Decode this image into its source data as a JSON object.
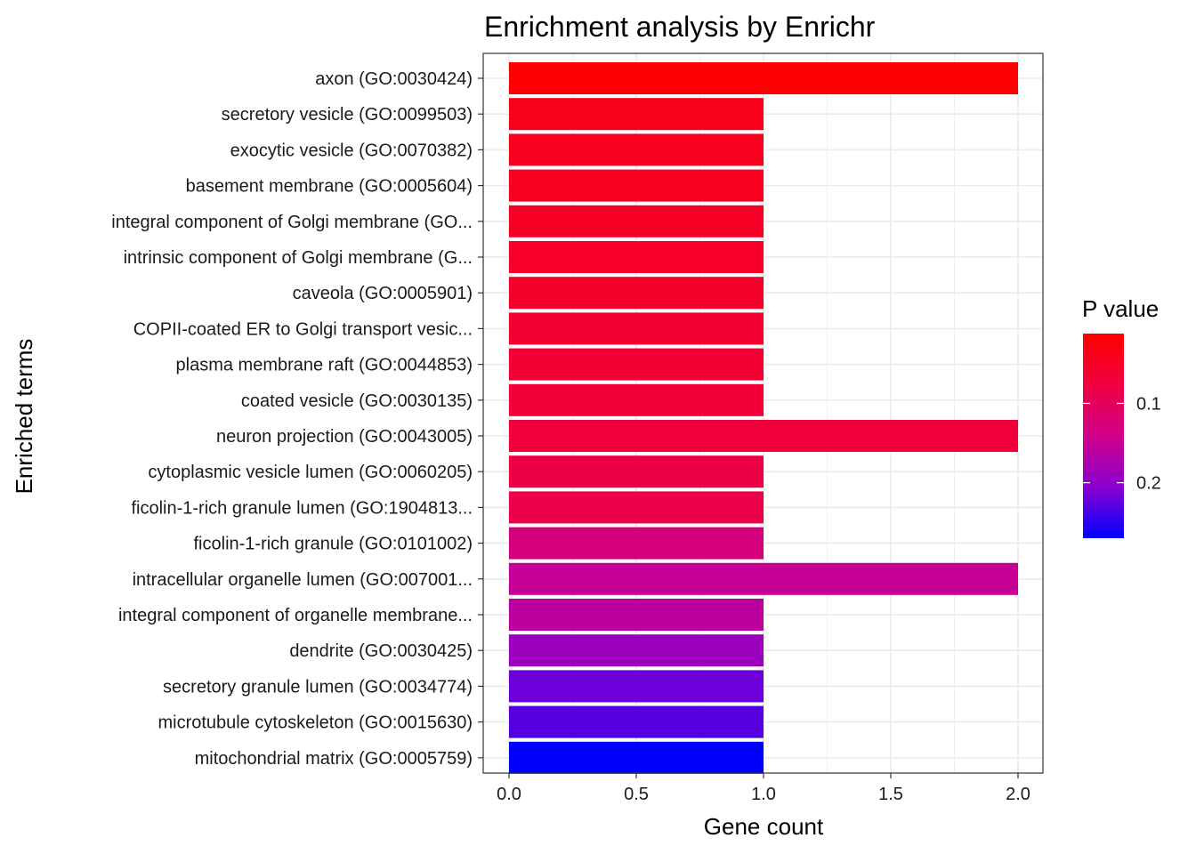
{
  "chart_data": {
    "type": "bar",
    "orientation": "horizontal",
    "title": "Enrichment analysis by Enrichr",
    "xlabel": "Gene count",
    "ylabel": "Enriched terms",
    "xlim": [
      0,
      2.1
    ],
    "xticks": [
      "0.0",
      "0.5",
      "1.0",
      "1.5",
      "2.0"
    ],
    "xtick_values": [
      0,
      0.5,
      1.0,
      1.5,
      2.0
    ],
    "grid": true,
    "categories": [
      "axon (GO:0030424)",
      "secretory vesicle (GO:0099503)",
      "exocytic vesicle (GO:0070382)",
      "basement membrane (GO:0005604)",
      "integral component of Golgi membrane (GO...",
      "intrinsic component of Golgi membrane (G...",
      "caveola (GO:0005901)",
      "COPII-coated ER to Golgi transport vesic...",
      "plasma membrane raft (GO:0044853)",
      "coated vesicle (GO:0030135)",
      "neuron projection (GO:0043005)",
      "cytoplasmic vesicle lumen (GO:0060205)",
      "ficolin-1-rich granule lumen (GO:1904813...",
      "ficolin-1-rich granule (GO:0101002)",
      "intracellular organelle lumen (GO:007001...",
      "integral component of organelle membrane...",
      "dendrite (GO:0030425)",
      "secretory granule lumen (GO:0034774)",
      "microtubule cytoskeleton (GO:0015630)",
      "mitochondrial matrix (GO:0005759)"
    ],
    "values": [
      2,
      1,
      1,
      1,
      1,
      1,
      1,
      1,
      1,
      1,
      2,
      1,
      1,
      1,
      2,
      1,
      1,
      1,
      1,
      1
    ],
    "p_values": [
      0.012,
      0.04,
      0.042,
      0.045,
      0.05,
      0.052,
      0.055,
      0.06,
      0.065,
      0.07,
      0.072,
      0.08,
      0.085,
      0.13,
      0.15,
      0.16,
      0.19,
      0.22,
      0.23,
      0.27
    ],
    "legend": {
      "title": "P value",
      "position": "right",
      "labels": [
        "0.1",
        "0.2"
      ],
      "label_values": [
        0.1,
        0.2
      ],
      "range": [
        0.012,
        0.27
      ],
      "low_color": "#ff0000",
      "high_color": "#0000ff"
    }
  }
}
